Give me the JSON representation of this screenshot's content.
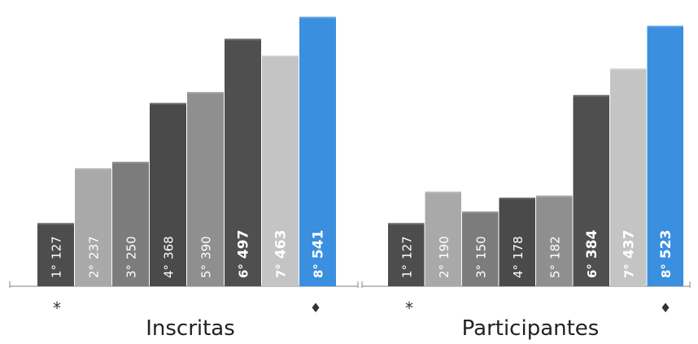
{
  "chart_data": [
    {
      "type": "bar",
      "title": "Inscritas",
      "marker_left": "*",
      "marker_right": "♦",
      "categories": [
        "1°",
        "2°",
        "3°",
        "4°",
        "5°",
        "6°",
        "7°",
        "8°"
      ],
      "values": [
        127,
        237,
        250,
        368,
        390,
        497,
        463,
        541
      ],
      "ylim": [
        0,
        560
      ],
      "bar_colors": [
        "#4d4d4d",
        "#a9a9a9",
        "#7c7c7c",
        "#4a4a4a",
        "#8f8f8f",
        "#4f4f4f",
        "#c4c4c4",
        "#3a8fdf"
      ],
      "grid": false
    },
    {
      "type": "bar",
      "title": "Participantes",
      "marker_left": "*",
      "marker_right": "♦",
      "categories": [
        "1°",
        "2°",
        "3°",
        "4°",
        "5°",
        "6°",
        "7°",
        "8°"
      ],
      "values": [
        127,
        190,
        150,
        178,
        182,
        384,
        437,
        523
      ],
      "ylim": [
        0,
        560
      ],
      "bar_colors": [
        "#4d4d4d",
        "#a9a9a9",
        "#7c7c7c",
        "#4a4a4a",
        "#8f8f8f",
        "#4f4f4f",
        "#c4c4c4",
        "#3a8fdf"
      ],
      "grid": false
    }
  ]
}
